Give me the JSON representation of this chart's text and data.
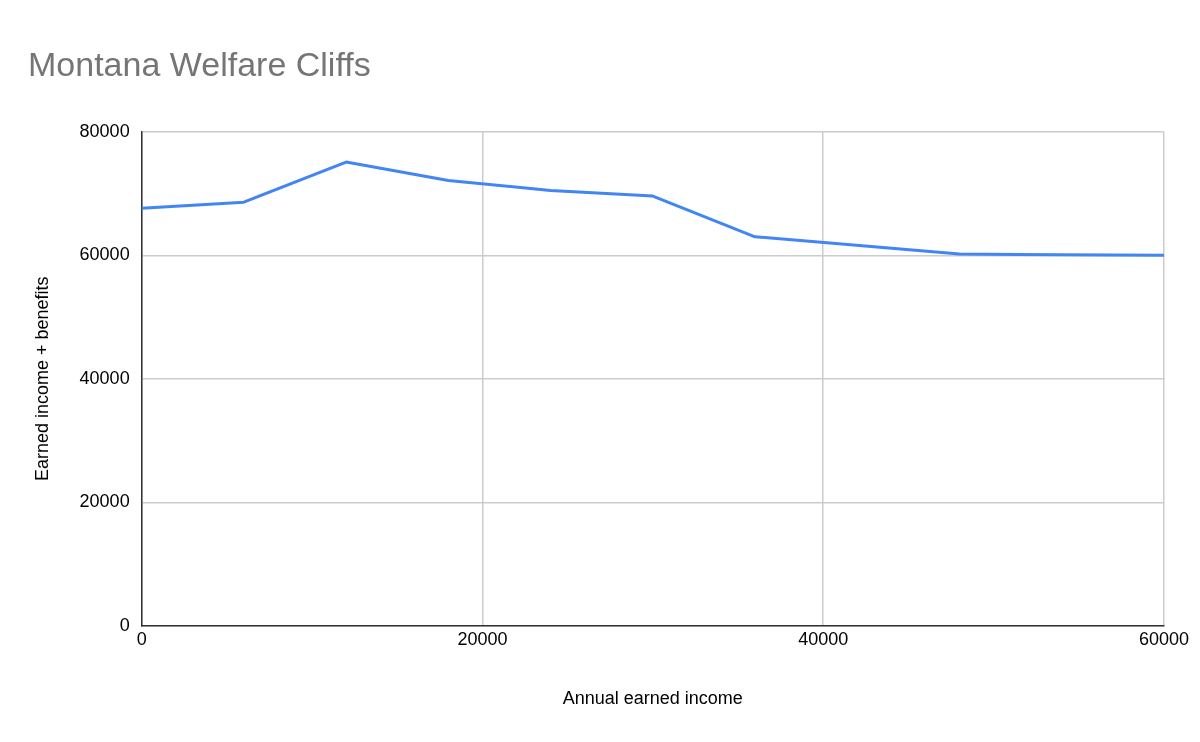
{
  "chart_data": {
    "type": "line",
    "title": "Montana Welfare Cliffs",
    "xlabel": "Annual earned income",
    "ylabel": "Earned income + benefits",
    "x": [
      0,
      6000,
      12000,
      18000,
      24000,
      30000,
      36000,
      48000,
      54000,
      60000
    ],
    "series": [
      {
        "color": "#4285f4",
        "values": [
          67600,
          68600,
          75100,
          72100,
          70500,
          69600,
          63000,
          60200,
          60100,
          60000
        ]
      }
    ],
    "xlim": [
      0,
      60000
    ],
    "xticks": [
      0,
      20000,
      40000,
      60000
    ],
    "ylim": [
      0,
      80000
    ],
    "yticks": [
      0,
      20000,
      40000,
      60000,
      80000
    ],
    "grid": true,
    "legend": false,
    "marker": "none",
    "line_style": "solid"
  }
}
